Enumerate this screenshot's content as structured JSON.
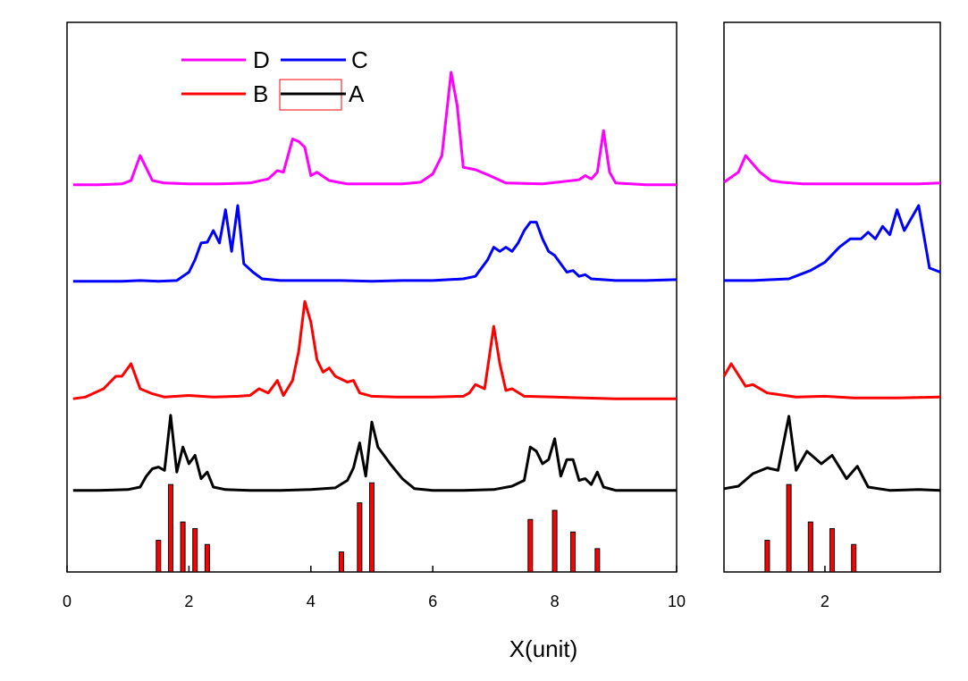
{
  "chart_data": [
    {
      "panel": "main",
      "type": "line",
      "title": "",
      "xlabel": "X(unit)",
      "ylabel": "",
      "xlim": [
        0,
        10
      ],
      "ylim": [
        0,
        6.6
      ],
      "xticks": [
        0,
        2,
        4,
        6,
        8,
        10
      ],
      "xtick_labels": [
        "0",
        "2",
        "4",
        "6",
        "8",
        "10"
      ],
      "grid": false,
      "legend": {
        "placement": "top-left",
        "entries": [
          {
            "name": "D",
            "color": "#ff00ff"
          },
          {
            "name": "C",
            "color": "#0000ff"
          },
          {
            "name": "B",
            "color": "#ff0000"
          },
          {
            "name": "A",
            "color": "#000000"
          }
        ],
        "highlight_entry": "A"
      },
      "series": [
        {
          "name": "D",
          "color": "#ff00ff",
          "points": [
            [
              0.1,
              4.65
            ],
            [
              0.5,
              4.65
            ],
            [
              0.9,
              4.66
            ],
            [
              1.05,
              4.7
            ],
            [
              1.2,
              5.0
            ],
            [
              1.3,
              4.85
            ],
            [
              1.4,
              4.7
            ],
            [
              1.6,
              4.67
            ],
            [
              2.0,
              4.66
            ],
            [
              2.5,
              4.66
            ],
            [
              3.0,
              4.67
            ],
            [
              3.3,
              4.72
            ],
            [
              3.45,
              4.82
            ],
            [
              3.55,
              4.8
            ],
            [
              3.7,
              5.2
            ],
            [
              3.8,
              5.17
            ],
            [
              3.9,
              5.1
            ],
            [
              4.0,
              4.76
            ],
            [
              4.1,
              4.8
            ],
            [
              4.3,
              4.7
            ],
            [
              4.6,
              4.66
            ],
            [
              5.0,
              4.66
            ],
            [
              5.5,
              4.66
            ],
            [
              5.8,
              4.68
            ],
            [
              6.0,
              4.78
            ],
            [
              6.15,
              5.0
            ],
            [
              6.3,
              6.0
            ],
            [
              6.4,
              5.6
            ],
            [
              6.5,
              4.86
            ],
            [
              6.7,
              4.83
            ],
            [
              6.9,
              4.77
            ],
            [
              7.2,
              4.67
            ],
            [
              7.8,
              4.66
            ],
            [
              8.4,
              4.71
            ],
            [
              8.5,
              4.76
            ],
            [
              8.6,
              4.72
            ],
            [
              8.7,
              4.8
            ],
            [
              8.8,
              5.3
            ],
            [
              8.9,
              4.8
            ],
            [
              9.0,
              4.67
            ],
            [
              9.5,
              4.65
            ],
            [
              10.0,
              4.65
            ]
          ]
        },
        {
          "name": "C",
          "color": "#0000ff",
          "points": [
            [
              0.1,
              3.49
            ],
            [
              0.5,
              3.49
            ],
            [
              0.9,
              3.49
            ],
            [
              1.2,
              3.5
            ],
            [
              1.5,
              3.49
            ],
            [
              1.8,
              3.5
            ],
            [
              2.0,
              3.6
            ],
            [
              2.1,
              3.75
            ],
            [
              2.2,
              3.95
            ],
            [
              2.3,
              3.96
            ],
            [
              2.4,
              4.1
            ],
            [
              2.5,
              3.95
            ],
            [
              2.6,
              4.35
            ],
            [
              2.7,
              3.85
            ],
            [
              2.8,
              4.4
            ],
            [
              2.9,
              3.7
            ],
            [
              3.05,
              3.6
            ],
            [
              3.2,
              3.52
            ],
            [
              3.5,
              3.5
            ],
            [
              4.0,
              3.5
            ],
            [
              4.5,
              3.5
            ],
            [
              5.0,
              3.49
            ],
            [
              5.5,
              3.5
            ],
            [
              6.0,
              3.5
            ],
            [
              6.5,
              3.52
            ],
            [
              6.7,
              3.55
            ],
            [
              6.9,
              3.75
            ],
            [
              7.0,
              3.9
            ],
            [
              7.1,
              3.85
            ],
            [
              7.2,
              3.9
            ],
            [
              7.3,
              3.85
            ],
            [
              7.4,
              3.95
            ],
            [
              7.5,
              4.1
            ],
            [
              7.6,
              4.2
            ],
            [
              7.7,
              4.2
            ],
            [
              7.8,
              4.0
            ],
            [
              7.9,
              3.85
            ],
            [
              8.0,
              3.8
            ],
            [
              8.1,
              3.7
            ],
            [
              8.2,
              3.6
            ],
            [
              8.3,
              3.62
            ],
            [
              8.4,
              3.55
            ],
            [
              8.5,
              3.57
            ],
            [
              8.6,
              3.52
            ],
            [
              9.0,
              3.5
            ],
            [
              9.5,
              3.5
            ],
            [
              10.0,
              3.51
            ]
          ]
        },
        {
          "name": "B",
          "color": "#ff0000",
          "points": [
            [
              0.1,
              2.08
            ],
            [
              0.3,
              2.1
            ],
            [
              0.6,
              2.2
            ],
            [
              0.8,
              2.35
            ],
            [
              0.9,
              2.35
            ],
            [
              1.05,
              2.5
            ],
            [
              1.2,
              2.2
            ],
            [
              1.4,
              2.14
            ],
            [
              1.6,
              2.1
            ],
            [
              2.0,
              2.12
            ],
            [
              2.4,
              2.1
            ],
            [
              2.8,
              2.11
            ],
            [
              3.0,
              2.12
            ],
            [
              3.15,
              2.2
            ],
            [
              3.3,
              2.15
            ],
            [
              3.45,
              2.3
            ],
            [
              3.55,
              2.12
            ],
            [
              3.7,
              2.3
            ],
            [
              3.8,
              2.65
            ],
            [
              3.9,
              3.25
            ],
            [
              4.0,
              3.0
            ],
            [
              4.1,
              2.55
            ],
            [
              4.2,
              2.4
            ],
            [
              4.3,
              2.45
            ],
            [
              4.4,
              2.35
            ],
            [
              4.6,
              2.28
            ],
            [
              4.7,
              2.3
            ],
            [
              4.8,
              2.15
            ],
            [
              5.0,
              2.11
            ],
            [
              5.4,
              2.1
            ],
            [
              6.0,
              2.1
            ],
            [
              6.5,
              2.11
            ],
            [
              6.6,
              2.15
            ],
            [
              6.7,
              2.25
            ],
            [
              6.85,
              2.2
            ],
            [
              7.0,
              2.95
            ],
            [
              7.1,
              2.5
            ],
            [
              7.2,
              2.18
            ],
            [
              7.3,
              2.2
            ],
            [
              7.5,
              2.11
            ],
            [
              8.0,
              2.1
            ],
            [
              9.0,
              2.08
            ],
            [
              10.0,
              2.08
            ]
          ]
        },
        {
          "name": "A",
          "color": "#000000",
          "points": [
            [
              0.1,
              0.98
            ],
            [
              0.5,
              0.98
            ],
            [
              1.0,
              0.99
            ],
            [
              1.2,
              1.02
            ],
            [
              1.3,
              1.15
            ],
            [
              1.4,
              1.24
            ],
            [
              1.5,
              1.26
            ],
            [
              1.6,
              1.22
            ],
            [
              1.7,
              1.88
            ],
            [
              1.8,
              1.2
            ],
            [
              1.9,
              1.5
            ],
            [
              2.0,
              1.3
            ],
            [
              2.1,
              1.4
            ],
            [
              2.2,
              1.12
            ],
            [
              2.3,
              1.2
            ],
            [
              2.4,
              1.02
            ],
            [
              2.6,
              0.99
            ],
            [
              3.0,
              0.98
            ],
            [
              3.5,
              0.98
            ],
            [
              4.0,
              0.99
            ],
            [
              4.4,
              1.01
            ],
            [
              4.6,
              1.1
            ],
            [
              4.7,
              1.25
            ],
            [
              4.8,
              1.55
            ],
            [
              4.9,
              1.15
            ],
            [
              5.0,
              1.8
            ],
            [
              5.1,
              1.5
            ],
            [
              5.3,
              1.3
            ],
            [
              5.5,
              1.12
            ],
            [
              5.7,
              1.0
            ],
            [
              6.0,
              0.98
            ],
            [
              6.5,
              0.98
            ],
            [
              7.0,
              0.99
            ],
            [
              7.3,
              1.03
            ],
            [
              7.5,
              1.1
            ],
            [
              7.6,
              1.5
            ],
            [
              7.7,
              1.45
            ],
            [
              7.8,
              1.3
            ],
            [
              7.9,
              1.35
            ],
            [
              8.0,
              1.6
            ],
            [
              8.1,
              1.15
            ],
            [
              8.2,
              1.35
            ],
            [
              8.3,
              1.35
            ],
            [
              8.4,
              1.1
            ],
            [
              8.5,
              1.12
            ],
            [
              8.6,
              1.05
            ],
            [
              8.7,
              1.2
            ],
            [
              8.8,
              1.02
            ],
            [
              9.0,
              0.98
            ],
            [
              10.0,
              0.98
            ]
          ]
        }
      ],
      "bars": {
        "name": "reference-lines",
        "color": "#ff0000",
        "x": [
          1.5,
          1.7,
          1.9,
          2.1,
          2.3,
          4.5,
          4.8,
          5.0,
          7.6,
          8.0,
          8.3,
          8.7
        ],
        "values": [
          0.38,
          1.05,
          0.6,
          0.52,
          0.33,
          0.24,
          0.83,
          1.07,
          0.63,
          0.74,
          0.48,
          0.28
        ]
      }
    },
    {
      "panel": "inset",
      "type": "line",
      "title": "",
      "xlabel": "",
      "ylabel": "",
      "xlim": [
        0.6,
        3.6
      ],
      "ylim": [
        0,
        6.6
      ],
      "xticks": [
        2
      ],
      "xtick_labels": [
        "2"
      ],
      "grid": false,
      "series": [
        {
          "name": "D",
          "color": "#ff00ff",
          "points": [
            [
              0.6,
              4.68
            ],
            [
              0.8,
              4.8
            ],
            [
              0.9,
              5.0
            ],
            [
              1.1,
              4.8
            ],
            [
              1.25,
              4.7
            ],
            [
              1.4,
              4.68
            ],
            [
              1.7,
              4.66
            ],
            [
              2.2,
              4.66
            ],
            [
              2.8,
              4.66
            ],
            [
              3.3,
              4.66
            ],
            [
              3.6,
              4.67
            ]
          ]
        },
        {
          "name": "C",
          "color": "#0000ff",
          "points": [
            [
              0.6,
              3.5
            ],
            [
              1.0,
              3.5
            ],
            [
              1.5,
              3.52
            ],
            [
              1.8,
              3.62
            ],
            [
              2.0,
              3.72
            ],
            [
              2.2,
              3.9
            ],
            [
              2.35,
              4.0
            ],
            [
              2.5,
              4.0
            ],
            [
              2.6,
              4.08
            ],
            [
              2.7,
              4.0
            ],
            [
              2.8,
              4.15
            ],
            [
              2.9,
              4.05
            ],
            [
              3.0,
              4.35
            ],
            [
              3.1,
              4.1
            ],
            [
              3.3,
              4.4
            ],
            [
              3.45,
              3.65
            ],
            [
              3.6,
              3.6
            ]
          ]
        },
        {
          "name": "B",
          "color": "#ff0000",
          "points": [
            [
              0.6,
              2.35
            ],
            [
              0.7,
              2.5
            ],
            [
              0.9,
              2.23
            ],
            [
              1.0,
              2.25
            ],
            [
              1.2,
              2.15
            ],
            [
              1.6,
              2.1
            ],
            [
              2.0,
              2.11
            ],
            [
              2.4,
              2.09
            ],
            [
              3.0,
              2.09
            ],
            [
              3.6,
              2.1
            ]
          ]
        },
        {
          "name": "A",
          "color": "#000000",
          "points": [
            [
              0.6,
              1.0
            ],
            [
              0.8,
              1.03
            ],
            [
              1.0,
              1.18
            ],
            [
              1.2,
              1.25
            ],
            [
              1.35,
              1.22
            ],
            [
              1.5,
              1.87
            ],
            [
              1.6,
              1.22
            ],
            [
              1.75,
              1.45
            ],
            [
              1.95,
              1.3
            ],
            [
              2.1,
              1.4
            ],
            [
              2.3,
              1.12
            ],
            [
              2.45,
              1.27
            ],
            [
              2.6,
              1.02
            ],
            [
              2.9,
              0.98
            ],
            [
              3.3,
              0.99
            ],
            [
              3.6,
              0.98
            ]
          ]
        }
      ],
      "bars": {
        "name": "reference-lines",
        "color": "#ff0000",
        "x": [
          1.2,
          1.5,
          1.8,
          2.1,
          2.4
        ],
        "values": [
          0.38,
          1.05,
          0.6,
          0.52,
          0.33
        ]
      }
    }
  ]
}
